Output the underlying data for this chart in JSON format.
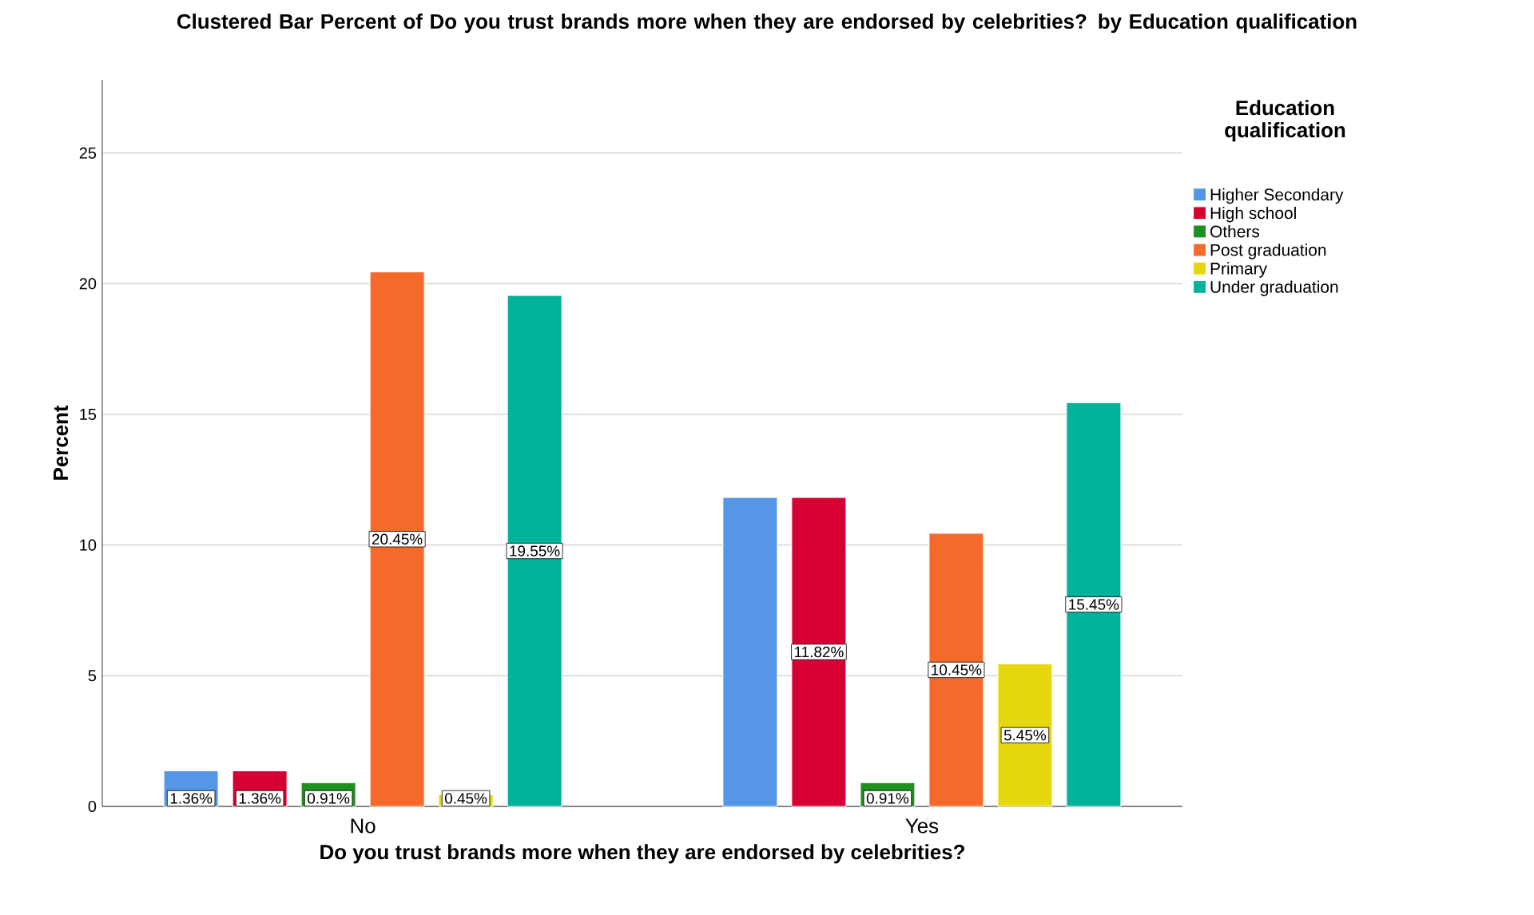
{
  "chart_data": {
    "type": "bar",
    "title": "Clustered Bar Percent of Do you trust brands more when they are endorsed by celebrities? by Education qualification",
    "xlabel": "Do you trust brands more when they are endorsed by celebrities?",
    "ylabel": "Percent",
    "legend_title": "Education qualification",
    "categories": [
      "No",
      "Yes"
    ],
    "ylim": [
      0,
      27.8
    ],
    "yticks": [
      0,
      5,
      10,
      15,
      20,
      25
    ],
    "grid": "y",
    "legend": "right",
    "series": [
      {
        "name": "Higher Secondary",
        "color": "#5596e6",
        "values": [
          1.36,
          11.82
        ],
        "value_labels": [
          "1.36%",
          null
        ]
      },
      {
        "name": "High school",
        "color": "#d70033",
        "values": [
          1.36,
          11.82
        ],
        "value_labels": [
          "1.36%",
          "11.82%"
        ]
      },
      {
        "name": "Others",
        "color": "#1f8f1f",
        "values": [
          0.91,
          0.91
        ],
        "value_labels": [
          "0.91%",
          "0.91%"
        ]
      },
      {
        "name": "Post graduation",
        "color": "#f46a2a",
        "values": [
          20.45,
          10.45
        ],
        "value_labels": [
          "20.45%",
          "10.45%"
        ]
      },
      {
        "name": "Primary",
        "color": "#e6d80e",
        "values": [
          0.45,
          5.45
        ],
        "value_labels": [
          "0.45%",
          "5.45%"
        ]
      },
      {
        "name": "Under graduation",
        "color": "#00b19c",
        "values": [
          19.55,
          15.45
        ],
        "value_labels": [
          "19.55%",
          "15.45%"
        ]
      }
    ]
  }
}
